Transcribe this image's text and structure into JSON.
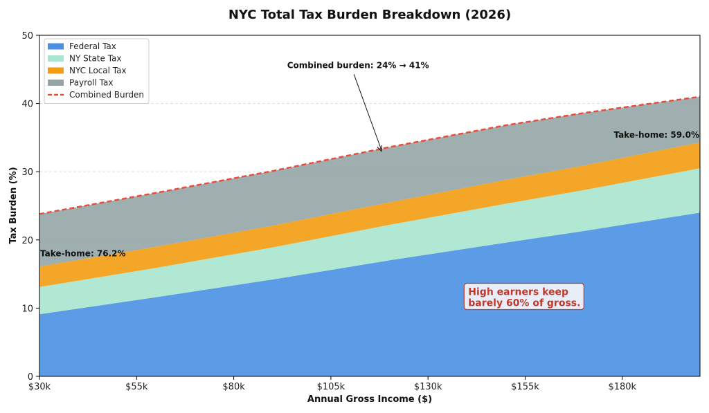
{
  "chart_data": {
    "type": "area",
    "title": "NYC Total Tax Burden Breakdown (2026)",
    "xlabel": "Annual Gross Income ($)",
    "ylabel": "Tax Burden (%)",
    "xlim": [
      30000,
      200000
    ],
    "ylim": [
      0,
      50
    ],
    "xticks": [
      30000,
      55000,
      80000,
      105000,
      130000,
      155000,
      180000
    ],
    "xtick_labels": [
      "$30k",
      "$55k",
      "$80k",
      "$105k",
      "$130k",
      "$155k",
      "$180k"
    ],
    "yticks": [
      0,
      10,
      20,
      30,
      40,
      50
    ],
    "ytick_labels": [
      "0",
      "10",
      "20",
      "30",
      "40",
      "50"
    ],
    "grid": "y",
    "legend_position": "top-left",
    "x": [
      30000,
      60000,
      90000,
      120000,
      150000,
      170000,
      200000
    ],
    "series": [
      {
        "name": "Federal Tax",
        "color": "#4a90e2",
        "values": [
          9.1,
          11.6,
          14.2,
          17.0,
          19.6,
          21.3,
          24.0
        ]
      },
      {
        "name": "NY State Tax",
        "color": "#a8e6cf",
        "values": [
          4.0,
          4.3,
          4.7,
          5.2,
          5.7,
          6.0,
          6.5
        ]
      },
      {
        "name": "NYC Local Tax",
        "color": "#f39c12",
        "values": [
          3.0,
          3.1,
          3.2,
          3.3,
          3.5,
          3.6,
          3.8
        ]
      },
      {
        "name": "Payroll Tax",
        "color": "#95a5a6",
        "values": [
          7.7,
          7.9,
          8.0,
          8.1,
          8.0,
          7.7,
          6.7
        ]
      }
    ],
    "combined": {
      "name": "Combined Burden",
      "color": "#e74c3c",
      "values": [
        23.8,
        26.9,
        30.1,
        33.6,
        36.8,
        38.6,
        41.0
      ]
    },
    "annotations": [
      {
        "text": "Combined burden: 24% → 41%",
        "arrow_to": [
          118000,
          33.0
        ],
        "anchor": [
          112000,
          45.2
        ]
      },
      {
        "text": "Take-home: 76.2%",
        "anchor": [
          30000,
          18.0
        ]
      },
      {
        "text": "Take-home: 59.0%",
        "anchor": [
          200000,
          35.4
        ]
      }
    ],
    "callout": {
      "lines": [
        "High earners keep",
        "barely 60% of gross."
      ],
      "text_color": "#c0392b",
      "box_fill": "#e8eef7",
      "box_stroke": "#c0392b",
      "anchor": [
        140000,
        10.8
      ]
    }
  }
}
